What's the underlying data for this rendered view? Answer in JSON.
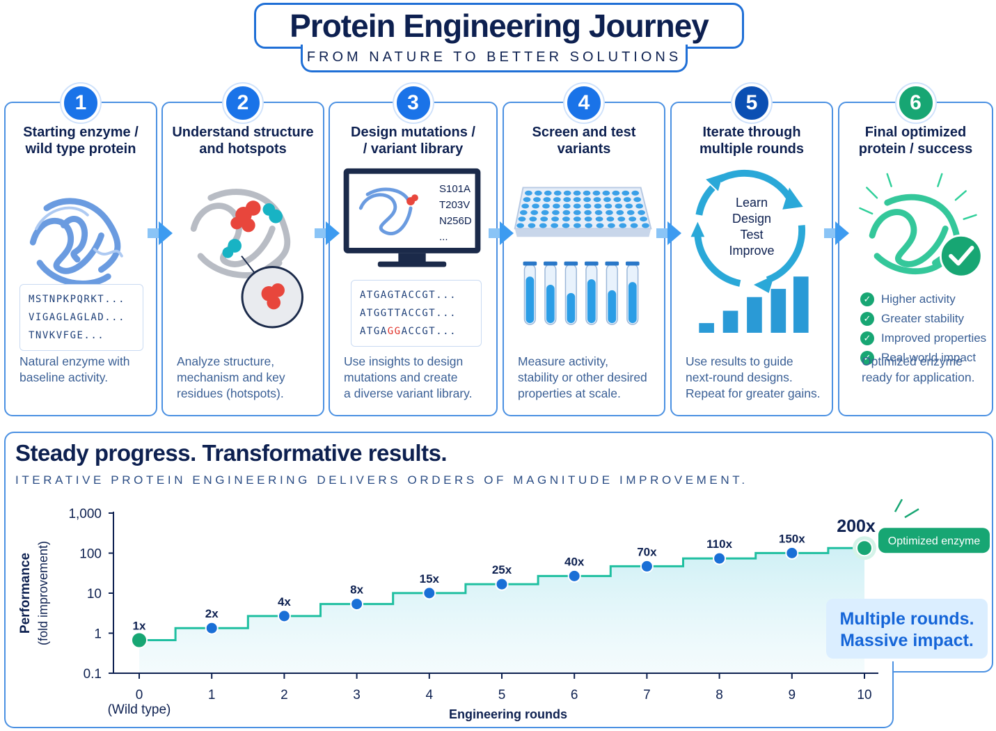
{
  "header": {
    "title": "Protein Engineering Journey",
    "subtitle": "FROM NATURE TO BETTER SOLUTIONS"
  },
  "steps": [
    {
      "number": "1",
      "title_line1": "Starting enzyme /",
      "title_line2": "wild type protein",
      "sequence": [
        "MSTNPKPQRKT...",
        "VIGAGLAGLAD...",
        "TNVKVFGE..."
      ],
      "desc": [
        "Natural enzyme with",
        "baseline activity."
      ]
    },
    {
      "number": "2",
      "title_line1": "Understand structure",
      "title_line2": "and hotspots",
      "desc": [
        "Analyze structure,",
        "mechanism and key",
        "residues (hotspots)."
      ]
    },
    {
      "number": "3",
      "title_line1": "Design mutations /",
      "title_line2": "/ variant library",
      "mutations": [
        "S101A",
        "T203V",
        "N256D",
        "..."
      ],
      "dna": [
        {
          "pre": "ATGAGTACCGT...",
          "hi": "",
          "post": ""
        },
        {
          "pre": "ATGGTTACCGT...",
          "hi": "",
          "post": ""
        },
        {
          "pre": "ATGA",
          "hi": "GG",
          "post": "ACCGT..."
        }
      ],
      "desc": [
        "Use insights to design",
        "mutations and create",
        "a diverse variant library."
      ]
    },
    {
      "number": "4",
      "title_line1": "Screen and test",
      "title_line2": "variants",
      "desc": [
        "Measure activity,",
        "stability or other desired",
        "properties at scale."
      ]
    },
    {
      "number": "5",
      "title_line1": "Iterate through",
      "title_line2": "multiple rounds",
      "cycle": [
        "Learn",
        "Design",
        "Test",
        "Improve"
      ],
      "desc": [
        "Use results to guide",
        "next-round designs.",
        "Repeat for greater gains."
      ]
    },
    {
      "number": "6",
      "title_line1": "Final optimized",
      "title_line2": "protein / success",
      "checks": [
        "Higher activity",
        "Greater stability",
        "Improved properties",
        "Real-world impact"
      ],
      "desc": [
        "Optimized enzyme",
        "ready for application."
      ]
    }
  ],
  "chart_section": {
    "heading": "Steady progress. Transformative results.",
    "subheading": "ITERATIVE PROTEIN ENGINEERING DELIVERS ORDERS OF MAGNITUDE IMPROVEMENT.",
    "impact_line1": "Multiple rounds.",
    "impact_line2": "Massive impact."
  },
  "chart_data": {
    "type": "line",
    "step_line": true,
    "x": [
      0,
      1,
      2,
      3,
      4,
      5,
      6,
      7,
      8,
      9,
      10
    ],
    "x_tick_labels": [
      "0",
      "1",
      "2",
      "3",
      "4",
      "5",
      "6",
      "7",
      "8",
      "9",
      "10"
    ],
    "x_first_sublabel": "(Wild type)",
    "values": [
      1,
      2,
      4,
      8,
      15,
      25,
      40,
      70,
      110,
      150,
      200
    ],
    "point_labels": [
      "1x",
      "2x",
      "4x",
      "8x",
      "15x",
      "25x",
      "40x",
      "70x",
      "110x",
      "150x",
      "200x"
    ],
    "final_label": "Optimized enzyme",
    "xlabel": "Engineering rounds",
    "ylabel": "Performance",
    "ylabel_sub": "(fold improvement)",
    "y_scale": "log",
    "ylim": [
      0.1,
      1000
    ],
    "y_ticks": [
      0.1,
      1,
      10,
      100,
      1000
    ],
    "y_tick_labels": [
      "0.1",
      "1",
      "10",
      "100",
      "1,000"
    ],
    "colors": {
      "line": "#1fbfa0",
      "point": "#1a6fd6",
      "endpoint": "#17a673",
      "fill": "#e4f6fa"
    }
  }
}
